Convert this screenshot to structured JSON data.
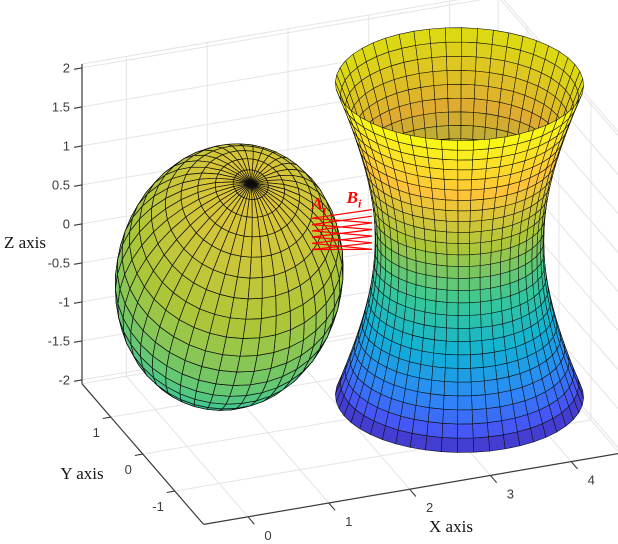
{
  "chart_data": {
    "type": "surface3d",
    "description": "3D plot of an ellipsoid and a hyperboloid of one sheet with red connector segments between nearest points",
    "view": {
      "azimuth": -37.5,
      "elevation": 30,
      "grid": true,
      "box": false
    },
    "style": {
      "background": "#ffffff",
      "grid_color": "#e4e4e4",
      "axis_color": "#3a3a3a",
      "tick_text_color": "#3c3c3c",
      "mesh_edge_color": "#0d0d0d",
      "accent_red": "#ff0000"
    },
    "axes": {
      "x": {
        "label": "X axis",
        "ticks": [
          0,
          1,
          2,
          3,
          4
        ],
        "range": [
          -0.55,
          4.6
        ]
      },
      "y": {
        "label": "Y axis",
        "ticks": [
          1,
          0,
          -1
        ],
        "range": [
          -1.9,
          1.9
        ]
      },
      "z": {
        "label": "Z axis",
        "ticks": [
          2,
          1.5,
          1,
          0.5,
          0,
          -0.5,
          -1,
          -1.5,
          -2
        ],
        "range": [
          -2.05,
          2.05
        ]
      }
    },
    "colormap": {
      "name": "parula",
      "anchors": [
        [
          0.0,
          "#3e26a8"
        ],
        [
          0.143,
          "#4852f4"
        ],
        [
          0.286,
          "#2d87f7"
        ],
        [
          0.429,
          "#11b1d6"
        ],
        [
          0.571,
          "#37c897"
        ],
        [
          0.714,
          "#abc739"
        ],
        [
          0.857,
          "#fec338"
        ],
        [
          1.0,
          "#f9fb14"
        ]
      ]
    },
    "surfaces": [
      {
        "id": "ellipsoid",
        "type": "ellipsoid",
        "center": [
          0.52,
          0.0,
          0.03
        ],
        "radii": [
          1.3,
          1.3,
          1.95
        ],
        "axis_direction": [
          -0.06,
          -0.5,
          0.862
        ],
        "mesh": [
          40,
          20
        ],
        "color_range": [
          0.52,
          0.8
        ],
        "color_curve": 1.0
      },
      {
        "id": "hyperboloid",
        "type": "hyperboloid",
        "center": [
          3.37,
          0.0
        ],
        "waist_radius": 0.97,
        "shape_c": 1.85,
        "z_range": [
          -2,
          2
        ],
        "mesh": [
          48,
          26
        ],
        "color_range": [
          0.0,
          1.0
        ],
        "color_curve": 0.65,
        "backface_shade": 0.88
      }
    ],
    "annotations": {
      "a_label": {
        "text": "A",
        "sub": "i",
        "pos": [
          1.52,
          -0.29,
          0.95
        ],
        "color": "#ff0000"
      },
      "b_label": {
        "text": "B",
        "sub": "i",
        "pos": [
          2.22,
          0.33,
          0.585
        ],
        "color": "#ff0000"
      },
      "connector_color": "#ff0000",
      "a_points": [
        [
          1.43,
          -0.29,
          0.76
        ],
        [
          1.43,
          -0.29,
          0.68
        ],
        [
          1.43,
          -0.29,
          0.6
        ],
        [
          1.43,
          -0.29,
          0.52
        ],
        [
          1.43,
          -0.29,
          0.44
        ],
        [
          1.43,
          -0.29,
          0.36
        ]
      ],
      "b_points": [
        [
          2.42,
          0.335,
          0.4
        ],
        [
          2.42,
          0.335,
          0.315
        ],
        [
          2.42,
          0.335,
          0.23
        ],
        [
          2.42,
          0.335,
          0.145
        ],
        [
          2.42,
          0.335,
          0.06
        ],
        [
          2.42,
          0.335,
          -0.025
        ],
        [
          2.42,
          0.335,
          -0.11
        ]
      ],
      "pairs": [
        [
          0,
          0
        ],
        [
          0,
          2
        ],
        [
          1,
          1
        ],
        [
          1,
          3
        ],
        [
          2,
          2
        ],
        [
          2,
          4
        ],
        [
          3,
          3
        ],
        [
          3,
          5
        ],
        [
          4,
          4
        ],
        [
          4,
          6
        ],
        [
          5,
          5
        ],
        [
          5,
          6
        ]
      ]
    }
  }
}
